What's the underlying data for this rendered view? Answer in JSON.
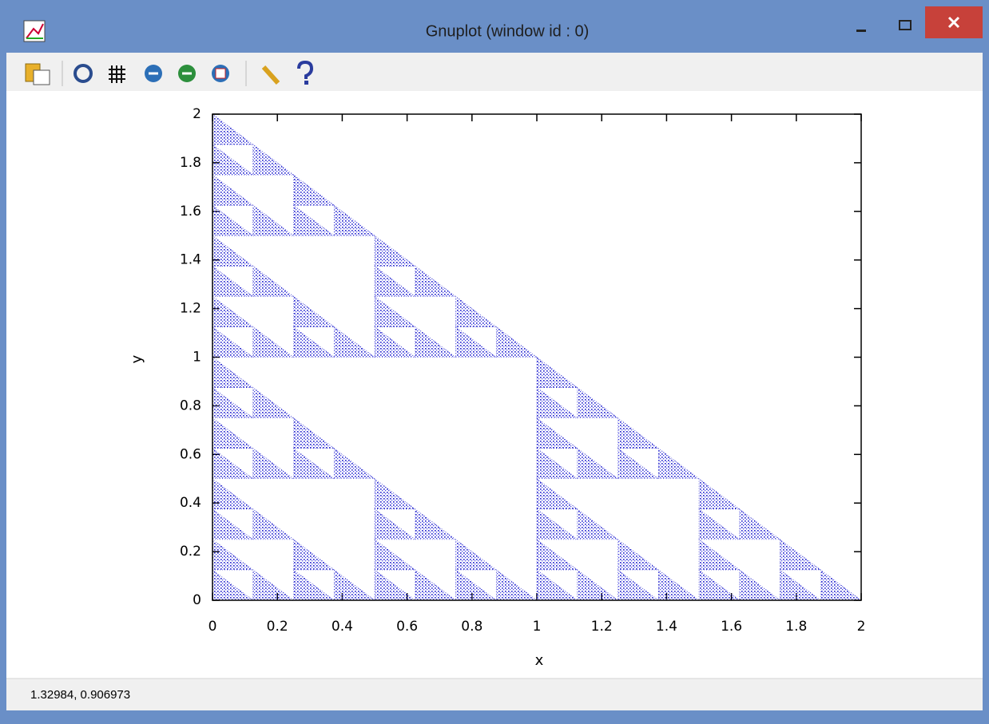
{
  "window": {
    "title": "Gnuplot (window id : 0)"
  },
  "status": "1.32984,  0.906973",
  "chart_data": {
    "type": "scatter",
    "xlabel": "x",
    "ylabel": "y",
    "color": "#1a1acc",
    "xlim": [
      0,
      2
    ],
    "ylim": [
      0,
      2
    ],
    "xticks": [
      0,
      0.2,
      0.4,
      0.6,
      0.8,
      1,
      1.2,
      1.4,
      1.6,
      1.8,
      2
    ],
    "yticks": [
      0,
      0.2,
      0.4,
      0.6,
      0.8,
      1,
      1.2,
      1.4,
      1.6,
      1.8,
      2
    ],
    "x": [
      0,
      0.125,
      0.25,
      0.375,
      0.5,
      0.625,
      0.75,
      0.875,
      1,
      1.125,
      1.25,
      1.375,
      1.5,
      1.625,
      1.75,
      1.875,
      0,
      0.25,
      0.5,
      0.75,
      1,
      1.25,
      1.5,
      1.75,
      0,
      0.125,
      0.5,
      0.625,
      1,
      1.125,
      1.5,
      1.625,
      0,
      0.5,
      1,
      1.5,
      0,
      0.125,
      0.25,
      0.375,
      1,
      1.125,
      1.25,
      1.375,
      0,
      0.25,
      1,
      1.25,
      0,
      0.125,
      1,
      1.125,
      0,
      1,
      0,
      0.125,
      0.25,
      0.375,
      0.5,
      0.625,
      0.75,
      0.875,
      0,
      0.25,
      0.5,
      0.75,
      0,
      0.125,
      0.5,
      0.625,
      0,
      0.5,
      0,
      0.125,
      0.25,
      0.375,
      0,
      0.25,
      0,
      0.125,
      0
    ],
    "y": [
      0,
      0,
      0,
      0,
      0,
      0,
      0,
      0,
      0,
      0,
      0,
      0,
      0,
      0,
      0,
      0,
      0.125,
      0.125,
      0.125,
      0.125,
      0.125,
      0.125,
      0.125,
      0.125,
      0.25,
      0.25,
      0.25,
      0.25,
      0.25,
      0.25,
      0.25,
      0.25,
      0.375,
      0.375,
      0.375,
      0.375,
      0.5,
      0.5,
      0.5,
      0.5,
      0.5,
      0.5,
      0.5,
      0.5,
      0.625,
      0.625,
      0.625,
      0.625,
      0.75,
      0.75,
      0.75,
      0.75,
      0.875,
      0.875,
      1,
      1,
      1,
      1,
      1,
      1,
      1,
      1,
      1.125,
      1.125,
      1.125,
      1.125,
      1.25,
      1.25,
      1.25,
      1.25,
      1.375,
      1.375,
      1.5,
      1.5,
      1.5,
      1.5,
      1.625,
      1.625,
      1.75,
      1.75,
      1.875
    ]
  }
}
